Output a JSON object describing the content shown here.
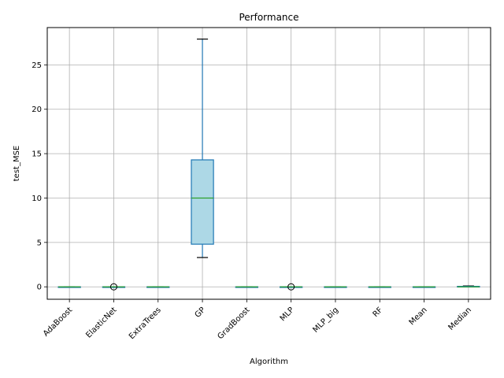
{
  "chart_data": {
    "type": "box",
    "title": "Performance",
    "xlabel": "Algorithm",
    "ylabel": "test_MSE",
    "ylim": [
      -1.4,
      29.2
    ],
    "yticks": [
      0,
      5,
      10,
      15,
      20,
      25
    ],
    "grid": true,
    "colors": {
      "box_fill": "#add8e6",
      "box_edge": "#1f77b4",
      "median": "#2ca02c",
      "whisker": "#1f77b4",
      "cap": "#000000",
      "flier": "#000000",
      "grid": "#b0b0b0"
    },
    "categories": [
      "AdaBoost",
      "ElasticNet",
      "ExtraTrees",
      "GP",
      "GradBoost",
      "MLP",
      "MLP_big",
      "RF",
      "Mean",
      "Median"
    ],
    "boxes": [
      {
        "name": "AdaBoost",
        "whislo": 0.0,
        "q1": 0.0,
        "med": 0.0,
        "q3": 0.0,
        "whishi": 0.0,
        "fliers": []
      },
      {
        "name": "ElasticNet",
        "whislo": 0.0,
        "q1": 0.0,
        "med": 0.0,
        "q3": 0.0,
        "whishi": 0.0,
        "fliers": [
          0.0
        ]
      },
      {
        "name": "ExtraTrees",
        "whislo": 0.0,
        "q1": 0.0,
        "med": 0.0,
        "q3": 0.0,
        "whishi": 0.0,
        "fliers": []
      },
      {
        "name": "GP",
        "whislo": 3.3,
        "q1": 4.8,
        "med": 10.0,
        "q3": 14.3,
        "whishi": 27.9,
        "fliers": []
      },
      {
        "name": "GradBoost",
        "whislo": 0.0,
        "q1": 0.0,
        "med": 0.0,
        "q3": 0.0,
        "whishi": 0.0,
        "fliers": []
      },
      {
        "name": "MLP",
        "whislo": 0.0,
        "q1": 0.0,
        "med": 0.0,
        "q3": 0.0,
        "whishi": 0.0,
        "fliers": [
          0.0
        ]
      },
      {
        "name": "MLP_big",
        "whislo": 0.0,
        "q1": 0.0,
        "med": 0.0,
        "q3": 0.0,
        "whishi": 0.0,
        "fliers": []
      },
      {
        "name": "RF",
        "whislo": 0.0,
        "q1": 0.0,
        "med": 0.0,
        "q3": 0.0,
        "whishi": 0.0,
        "fliers": []
      },
      {
        "name": "Mean",
        "whislo": 0.0,
        "q1": 0.0,
        "med": 0.0,
        "q3": 0.0,
        "whishi": 0.0,
        "fliers": []
      },
      {
        "name": "Median",
        "whislo": 0.0,
        "q1": 0.0,
        "med": 0.0,
        "q3": 0.05,
        "whishi": 0.1,
        "fliers": []
      }
    ]
  }
}
